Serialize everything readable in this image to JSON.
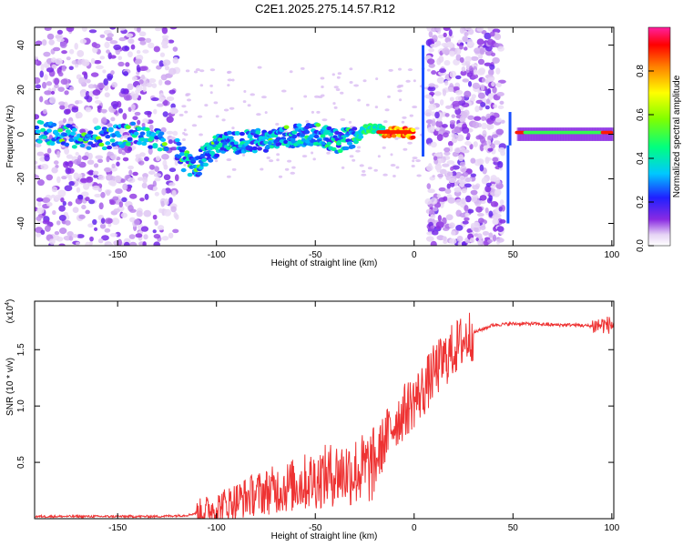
{
  "title": "C2E1.2025.275.14.57.R12",
  "chart_data": [
    {
      "type": "heatmap",
      "title": "C2E1.2025.275.14.57.R12",
      "xlabel": "Height of straight line (km)",
      "ylabel": "Frequency (Hz)",
      "xlim": [
        -192,
        101
      ],
      "ylim": [
        -50,
        48
      ],
      "xticks": [
        -150,
        -100,
        -50,
        0,
        50,
        100
      ],
      "yticks": [
        -40,
        -20,
        0,
        20,
        40
      ],
      "colorbar": {
        "label": "Normalized spectral amplitude",
        "range": [
          0,
          1
        ],
        "ticks": [
          0.0,
          0.2,
          0.4,
          0.6,
          0.8
        ]
      },
      "ridge": {
        "x": [
          -190,
          -180,
          -170,
          -160,
          -150,
          -140,
          -130,
          -122,
          -115,
          -110,
          -100,
          -90,
          -80,
          -70,
          -60,
          -50,
          -40,
          -30,
          -25,
          -20,
          -15,
          -10,
          -5,
          0,
          50,
          55,
          60,
          70,
          80,
          90,
          98
        ],
        "y": [
          1,
          0,
          -1,
          -2,
          -1,
          0,
          -2,
          -5,
          -13,
          -14,
          -5,
          -4,
          -3,
          -2,
          -1,
          0,
          -3,
          -2,
          2,
          3,
          1,
          1,
          1,
          0,
          0,
          1,
          1,
          1,
          1,
          1,
          1
        ]
      },
      "noise_bands_x": [
        [
          -192,
          -120
        ],
        [
          7,
          45
        ]
      ]
    },
    {
      "type": "line",
      "xlabel": "Height of straight line (km)",
      "ylabel": "SNR (10 * v/v)",
      "multiplier_label": "(x10",
      "multiplier_exp": "4",
      "xlim": [
        -192,
        101
      ],
      "ylim": [
        0,
        1.93
      ],
      "xticks": [
        -150,
        -100,
        -50,
        0,
        50,
        100
      ],
      "yticks": [
        0.5,
        1.0,
        1.5
      ],
      "series": [
        {
          "name": "SNR",
          "color": "#ee3333",
          "x": [
            -192,
            -170,
            -150,
            -130,
            -115,
            -110,
            -100,
            -90,
            -80,
            -70,
            -60,
            -50,
            -40,
            -30,
            -25,
            -20,
            -15,
            -10,
            -5,
            0,
            5,
            10,
            15,
            20,
            25,
            30,
            40,
            50,
            60,
            70,
            80,
            90,
            95,
            100
          ],
          "y": [
            0.02,
            0.02,
            0.02,
            0.02,
            0.03,
            0.05,
            0.1,
            0.16,
            0.22,
            0.26,
            0.3,
            0.35,
            0.4,
            0.42,
            0.44,
            0.48,
            0.7,
            0.85,
            0.95,
            1.05,
            1.15,
            1.3,
            1.4,
            1.5,
            1.58,
            1.65,
            1.72,
            1.73,
            1.73,
            1.72,
            1.72,
            1.71,
            1.72,
            1.72
          ]
        }
      ]
    }
  ],
  "colors": {
    "snr_line": "#ee3333",
    "axis": "#000000"
  }
}
